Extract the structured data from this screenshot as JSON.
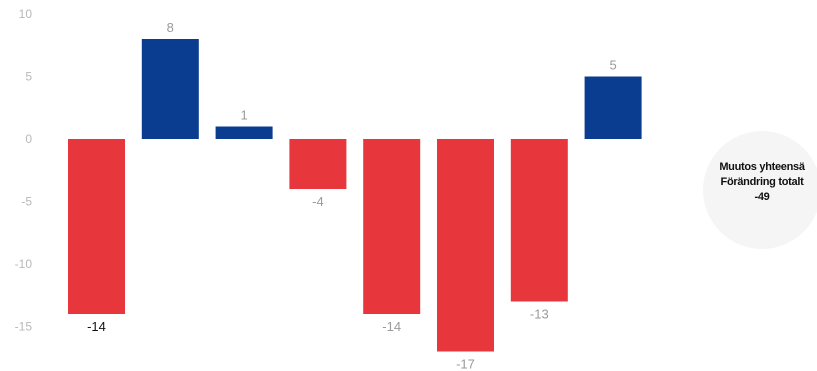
{
  "chart_data": {
    "type": "bar",
    "title": "",
    "xlabel": "",
    "ylabel": "",
    "ylim": [
      -15,
      10
    ],
    "yticks": [
      10,
      5,
      0,
      -5,
      -10,
      -15
    ],
    "values": [
      -14,
      8,
      1,
      -4,
      -14,
      -17,
      -13,
      5
    ],
    "data_labels": [
      "-14",
      "8",
      "1",
      "-4",
      "-14",
      "-17",
      "-13",
      "5"
    ],
    "grid": false,
    "colors": {
      "positive": "#0a3d8f",
      "negative": "#e8373c",
      "tick_label": "#b8b8b8",
      "data_label_dark": "#111111",
      "data_label_light": "#9a9a9a"
    }
  },
  "total_box": {
    "line1": "Muutos yhteensä",
    "line2": "Förändring totalt",
    "value": "-49"
  }
}
